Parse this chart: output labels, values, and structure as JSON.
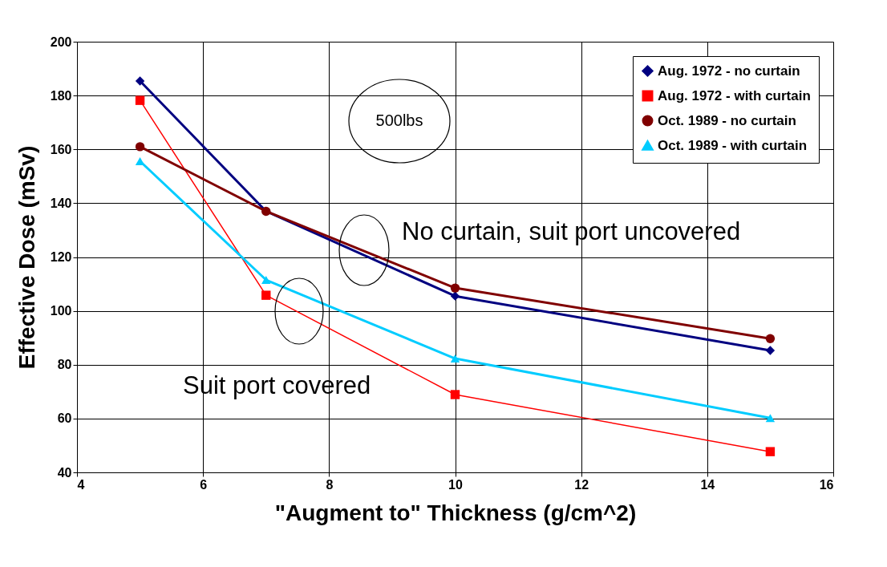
{
  "chart_data": {
    "type": "line",
    "xlabel": "\"Augment to\" Thickness (g/cm^2)",
    "ylabel": "Effective Dose (mSv)",
    "x": [
      5,
      7,
      10,
      15
    ],
    "series": [
      {
        "name": "Aug. 1972 - no curtain",
        "color": "#000080",
        "marker": "diamond",
        "values": [
          185.4,
          137,
          105.5,
          85.3
        ]
      },
      {
        "name": "Aug. 1972 - with curtain",
        "color": "#ff0000",
        "marker": "square",
        "values": [
          178.2,
          105.8,
          68.9,
          47.7
        ]
      },
      {
        "name": "Oct. 1989 - no curtain",
        "color": "#800000",
        "marker": "circle",
        "values": [
          161,
          137,
          108.5,
          89.7
        ]
      },
      {
        "name": "Oct. 1989 - with curtain",
        "color": "#00ccff",
        "marker": "triangle",
        "values": [
          155.6,
          111.5,
          82.3,
          60.2
        ]
      }
    ],
    "xlim": [
      4,
      16
    ],
    "xticks": [
      4,
      6,
      8,
      10,
      12,
      14,
      16
    ],
    "ylim": [
      40,
      200
    ],
    "yticks": [
      40,
      60,
      80,
      100,
      120,
      140,
      160,
      180,
      200
    ],
    "annotations": [
      "500lbs",
      "No curtain, suit port uncovered",
      "Suit port covered"
    ],
    "grid": true,
    "legend": "top right",
    "line_style": "solid"
  }
}
